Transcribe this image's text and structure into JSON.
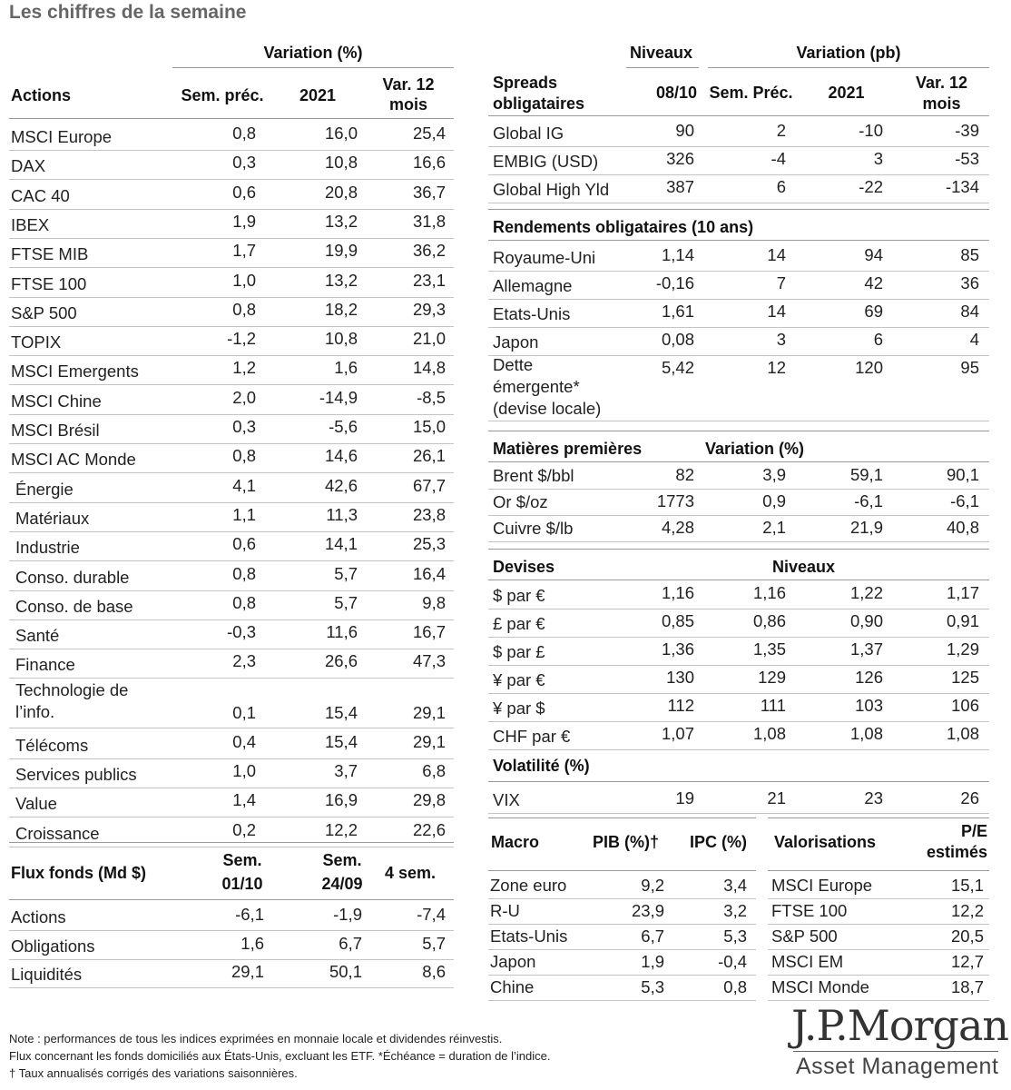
{
  "title": "Les chiffres de la semaine",
  "actions": {
    "group_header": "Variation (%)",
    "headers": [
      "Actions",
      "Sem. préc.",
      "2021",
      "Var. 12 mois"
    ],
    "rows": [
      [
        "MSCI Europe",
        "0,8",
        "16,0",
        "25,4"
      ],
      [
        "DAX",
        "0,3",
        "10,8",
        "16,6"
      ],
      [
        "CAC 40",
        "0,6",
        "20,8",
        "36,7"
      ],
      [
        "IBEX",
        "1,9",
        "13,2",
        "31,8"
      ],
      [
        "FTSE MIB",
        "1,7",
        "19,9",
        "36,2"
      ],
      [
        "FTSE 100",
        "1,0",
        "13,2",
        "23,1"
      ],
      [
        "S&P 500",
        "0,8",
        "18,2",
        "29,3"
      ],
      [
        "TOPIX",
        "-1,2",
        "10,8",
        "21,0"
      ],
      [
        "MSCI Emergents",
        "1,2",
        "1,6",
        "14,8"
      ],
      [
        "MSCI Chine",
        "2,0",
        "-14,9",
        "-8,5"
      ],
      [
        "MSCI Brésil",
        "0,3",
        "-5,6",
        "15,0"
      ],
      [
        "MSCI AC Monde",
        "0,8",
        "14,6",
        "26,1"
      ],
      [
        "Énergie",
        "4,1",
        "42,6",
        "67,7"
      ],
      [
        "Matériaux",
        "1,1",
        "11,3",
        "23,8"
      ],
      [
        "Industrie",
        "0,6",
        "14,1",
        "25,3"
      ],
      [
        "Conso. durable",
        "0,8",
        "5,7",
        "16,4"
      ],
      [
        "Conso. de base",
        "0,8",
        "5,7",
        "9,8"
      ],
      [
        "Santé",
        "-0,3",
        "11,6",
        "16,7"
      ],
      [
        "Finance",
        "2,3",
        "26,6",
        "47,3"
      ],
      [
        "Technologie de l’info.",
        "0,1",
        "15,4",
        "29,1"
      ],
      [
        "Télécoms",
        "0,4",
        "15,4",
        "29,1"
      ],
      [
        "Services publics",
        "1,0",
        "3,7",
        "6,8"
      ],
      [
        "Value",
        "1,4",
        "16,9",
        "29,8"
      ],
      [
        "Croissance",
        "0,2",
        "12,2",
        "22,6"
      ]
    ]
  },
  "flux": {
    "headers": [
      "Flux fonds (Md $)",
      "Sem. 01/10",
      "Sem. 24/09",
      "4 sem."
    ],
    "rows": [
      [
        "Actions",
        "-6,1",
        "-1,9",
        "-7,4"
      ],
      [
        "Obligations",
        "1,6",
        "6,7",
        "5,7"
      ],
      [
        "Liquidités",
        "29,1",
        "50,1",
        "8,6"
      ]
    ]
  },
  "spreads": {
    "top_headers": [
      "Niveaux",
      "Variation (pb)"
    ],
    "headers": [
      "Spreads obligataires",
      "08/10",
      "Sem. Préc.",
      "2021",
      "Var. 12 mois"
    ],
    "rows": [
      [
        "Global IG",
        "90",
        "2",
        "-10",
        "-39"
      ],
      [
        "EMBIG (USD)",
        "326",
        "-4",
        "3",
        "-53"
      ],
      [
        "Global High Yld",
        "387",
        "6",
        "-22",
        "-134"
      ]
    ]
  },
  "rendements": {
    "header": "Rendements obligataires (10 ans)",
    "rows": [
      [
        "Royaume-Uni",
        "1,14",
        "14",
        "94",
        "85"
      ],
      [
        "Allemagne",
        "-0,16",
        "7",
        "42",
        "36"
      ],
      [
        "Etats-Unis",
        "1,61",
        "14",
        "69",
        "84"
      ],
      [
        "Japon",
        "0,08",
        "3",
        "6",
        "4"
      ],
      [
        "Dette émergente* (devise locale)",
        "5,42",
        "12",
        "120",
        "95"
      ]
    ]
  },
  "matieres": {
    "header": "Matières premières",
    "subheader": "Variation (%)",
    "rows": [
      [
        "Brent $/bbl",
        "82",
        "3,9",
        "59,1",
        "90,1"
      ],
      [
        "Or $/oz",
        "1773",
        "0,9",
        "-6,1",
        "-6,1"
      ],
      [
        "Cuivre $/lb",
        "4,28",
        "2,1",
        "21,9",
        "40,8"
      ]
    ]
  },
  "devises": {
    "header": "Devises",
    "subheader": "Niveaux",
    "rows": [
      [
        "$ par €",
        "1,16",
        "1,16",
        "1,22",
        "1,17"
      ],
      [
        "£ par €",
        "0,85",
        "0,86",
        "0,90",
        "0,91"
      ],
      [
        "$ par £",
        "1,36",
        "1,35",
        "1,37",
        "1,29"
      ],
      [
        "¥ par €",
        "130",
        "129",
        "126",
        "125"
      ],
      [
        "¥ par $",
        "112",
        "111",
        "103",
        "106"
      ],
      [
        "CHF par €",
        "1,07",
        "1,08",
        "1,08",
        "1,08"
      ]
    ]
  },
  "volatilite": {
    "header": "Volatilité (%)",
    "rows": [
      [
        "VIX",
        "19",
        "21",
        "23",
        "26"
      ]
    ]
  },
  "macro": {
    "headers": [
      "Macro",
      "PIB (%)†",
      "IPC (%)"
    ],
    "rows": [
      [
        "Zone euro",
        "9,2",
        "3,4"
      ],
      [
        "R-U",
        "23,9",
        "3,2"
      ],
      [
        "Etats-Unis",
        "6,7",
        "5,3"
      ],
      [
        "Japon",
        "1,9",
        "-0,4"
      ],
      [
        "Chine",
        "5,3",
        "0,8"
      ]
    ]
  },
  "valorisations": {
    "headers": [
      "Valorisations",
      "P/E estimés"
    ],
    "rows": [
      [
        "MSCI Europe",
        "15,1"
      ],
      [
        "FTSE 100",
        "12,2"
      ],
      [
        "S&P 500",
        "20,5"
      ],
      [
        "MSCI EM",
        "12,7"
      ],
      [
        "MSCI Monde",
        "18,7"
      ]
    ]
  },
  "notes": [
    "Note : performances de tous les indices exprimées en monnaie locale et dividendes réinvestis.",
    "Flux concernant les fonds domiciliés aux États-Unis, excluant les ETF. *Échéance = duration de l’indice.",
    "† Taux annualisés corrigés des variations saisonnières."
  ],
  "logo": {
    "line1": "J.P.Morgan",
    "line2": "Asset Management"
  }
}
